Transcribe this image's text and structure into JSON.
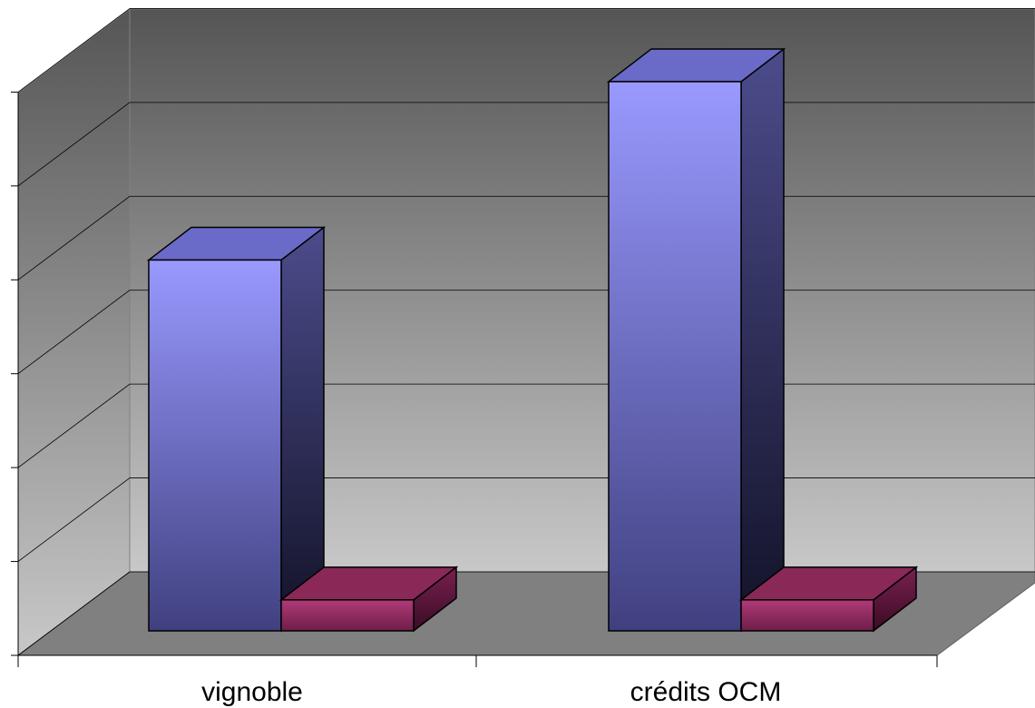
{
  "chart_data": {
    "type": "bar3d",
    "categories": [
      "vignoble",
      "crédits OCM"
    ],
    "series": [
      {
        "color": "#9999ff",
        "values": [
          3.95,
          5.85
        ]
      },
      {
        "color": "#993366",
        "values": [
          0.33,
          0.33
        ]
      }
    ],
    "ylim": [
      0,
      7
    ],
    "yticks": [
      0,
      1,
      2,
      3,
      4,
      5,
      6,
      7
    ],
    "grid": true
  }
}
